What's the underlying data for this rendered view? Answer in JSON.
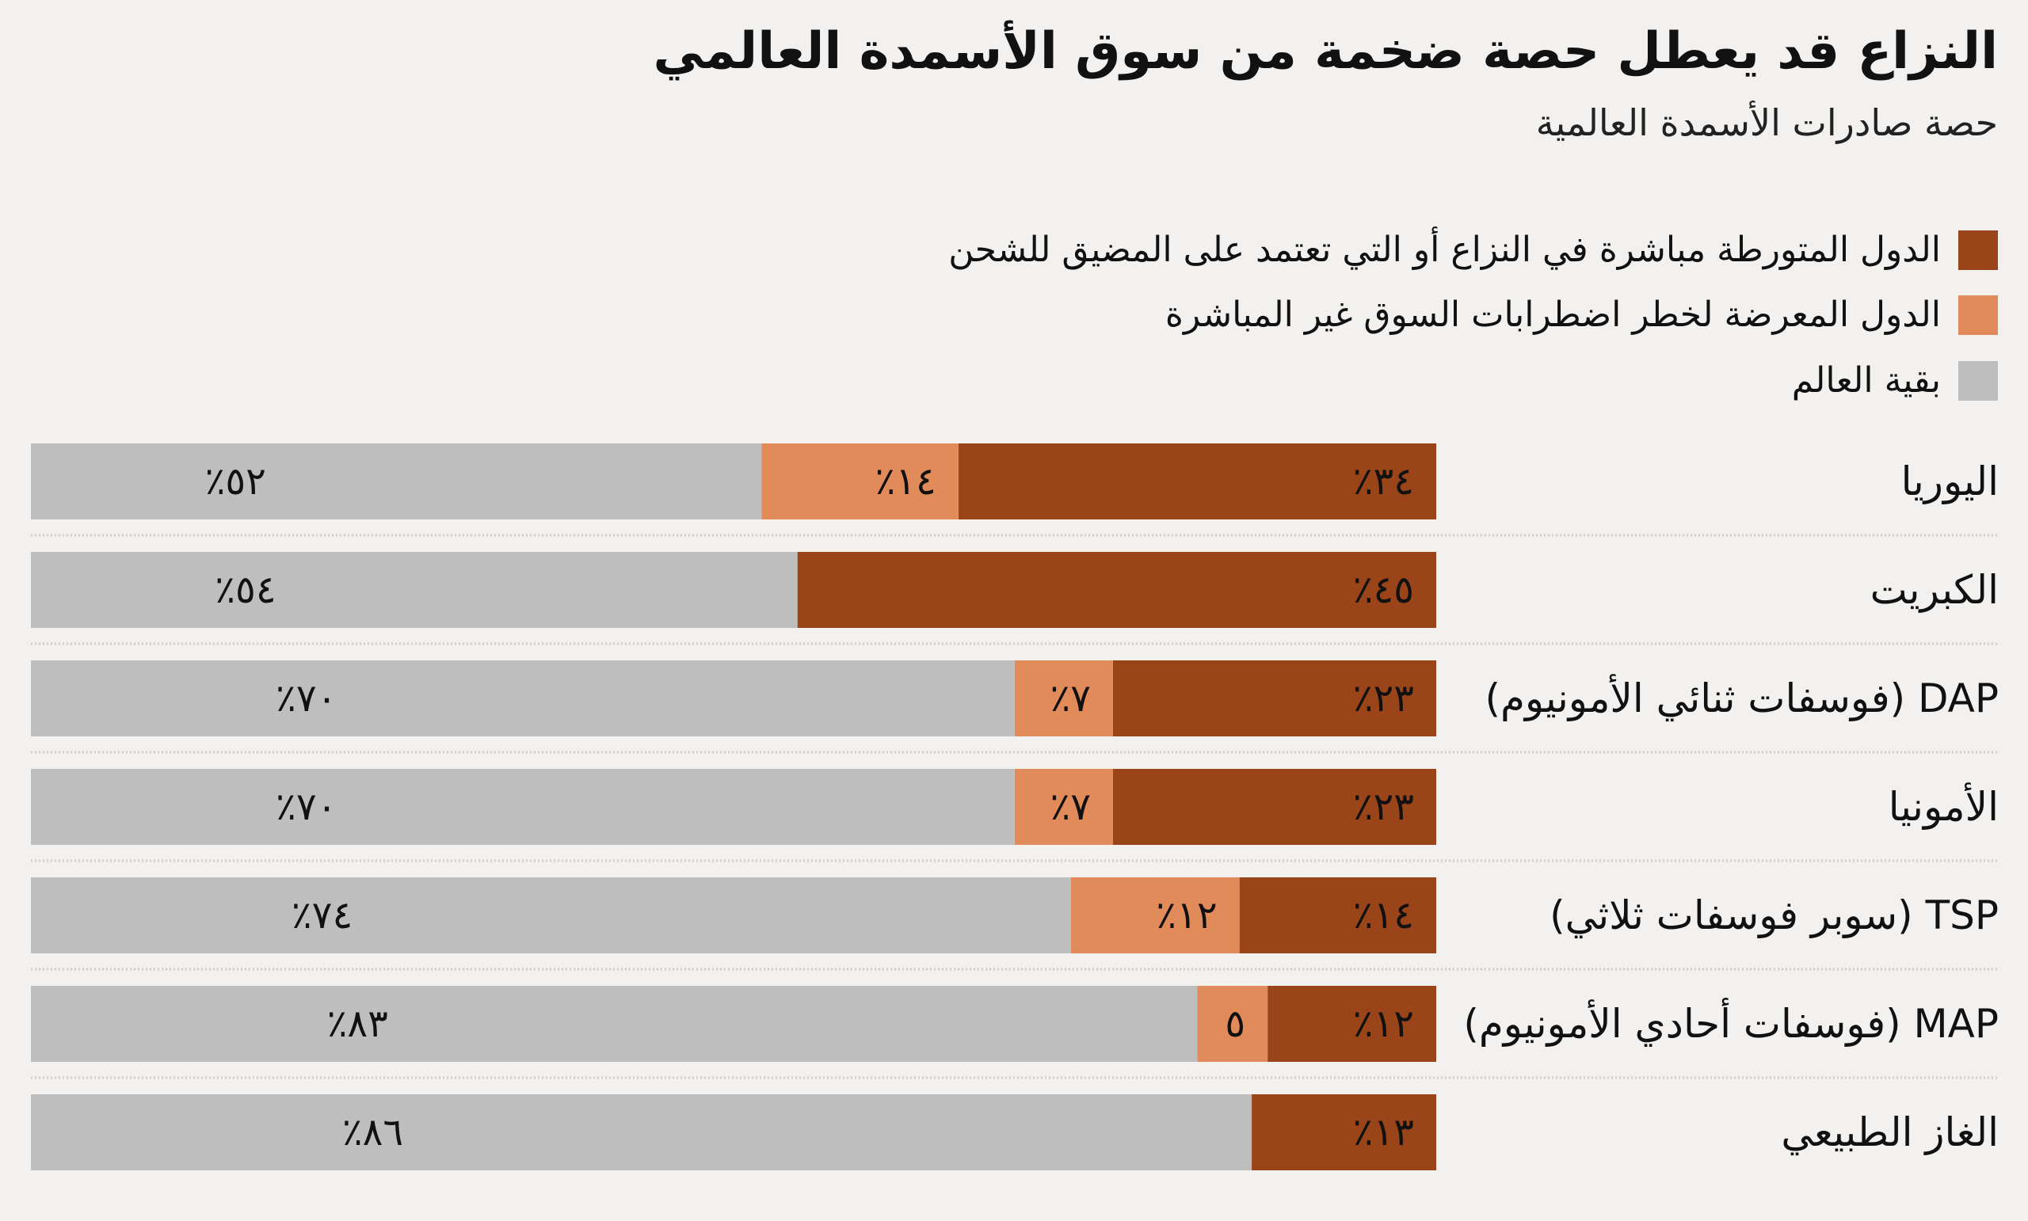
{
  "chart_data": {
    "type": "bar",
    "orientation": "horizontal",
    "stacked": true,
    "direction": "rtl",
    "title": "النزاع قد يعطل حصة ضخمة من سوق الأسمدة العالمي",
    "subtitle": "حصة صادرات الأسمدة العالمية",
    "unit": "%",
    "legend_position": "top-right",
    "grid": false,
    "categories": [
      "اليوريا",
      "الكبريت",
      "DAP (فوسفات ثنائي الأمونيوم)",
      "الأمونيا",
      "TSP (سوبر فوسفات ثلاثي)",
      "MAP (فوسفات أحادي الأمونيوم)",
      "الغاز الطبيعي"
    ],
    "series": [
      {
        "name": "الدول المتورطة مباشرة في النزاع أو التي تعتمد على المضيق للشحن",
        "color": "#9a4419",
        "values": [
          34,
          45,
          23,
          23,
          14,
          12,
          13
        ],
        "labels": [
          "٣٤٪",
          "٤٥٪",
          "٢٣٪",
          "٢٣٪",
          "١٤٪",
          "١٢٪",
          "١٣٪"
        ]
      },
      {
        "name": "الدول المعرضة لخطر اضطرابات السوق غير المباشرة",
        "color": "#e28b5a",
        "values": [
          14,
          0,
          7,
          7,
          12,
          5,
          0
        ],
        "labels": [
          "١٤٪",
          "",
          "٧٪",
          "٧٪",
          "١٢٪",
          "٥",
          ""
        ]
      },
      {
        "name": "بقية العالم",
        "color": "#bebebe",
        "values": [
          52,
          54,
          70,
          70,
          74,
          83,
          86
        ],
        "labels": [
          "٥٢٪",
          "٥٤٪",
          "٧٠٪",
          "٧٠٪",
          "٧٤٪",
          "٨٣٪",
          "٨٦٪"
        ]
      }
    ],
    "extra_labels": [
      "",
      "",
      "٧٪",
      "٧٪",
      "",
      "٥٪",
      ""
    ]
  }
}
